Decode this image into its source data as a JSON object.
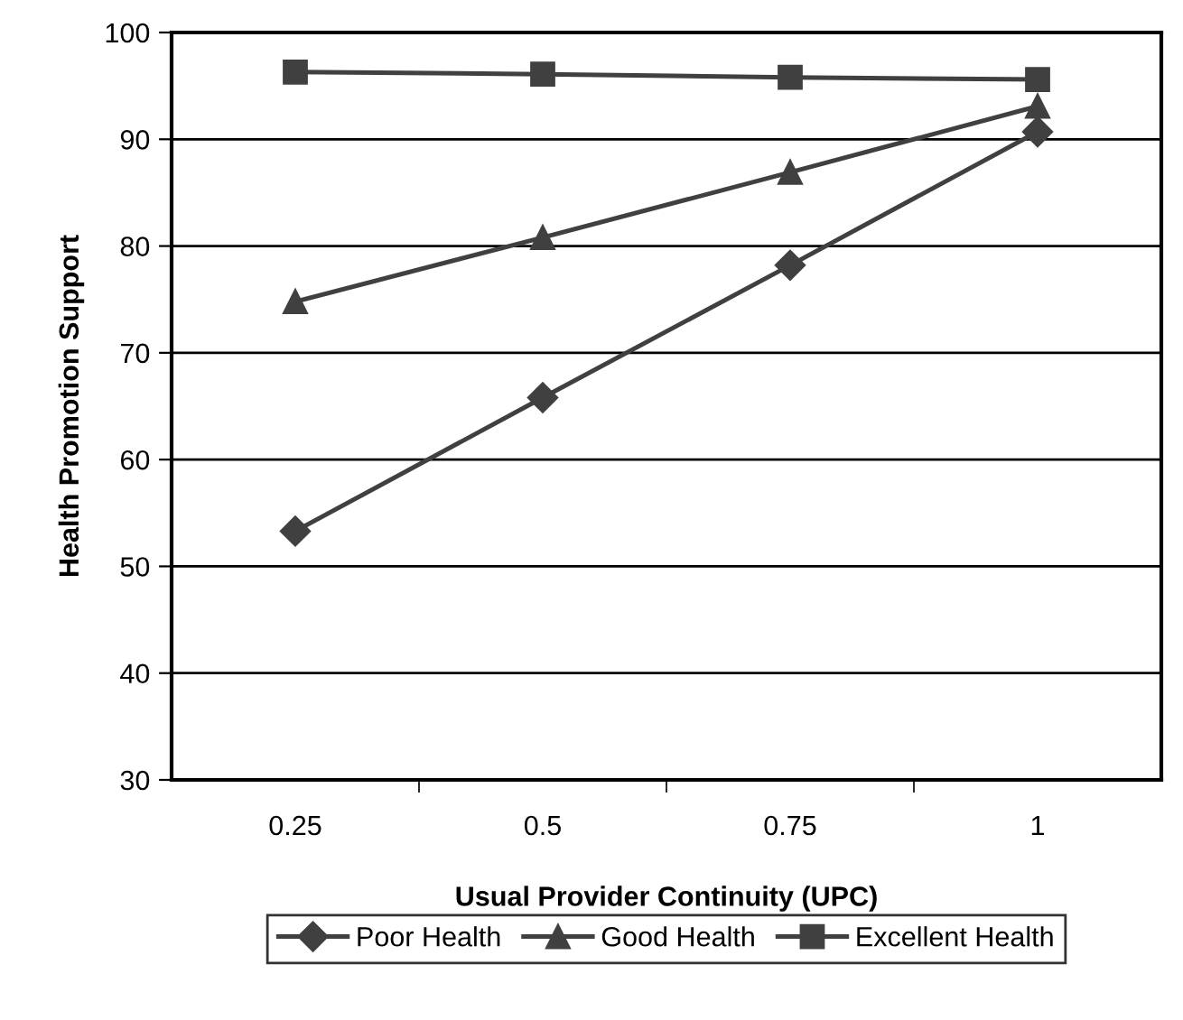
{
  "chart_data": {
    "type": "line",
    "xlabel": "Usual Provider Continuity (UPC)",
    "ylabel": "Health Promotion Support",
    "categories": [
      "0.25",
      "0.5",
      "0.75",
      "1"
    ],
    "series": [
      {
        "name": "Poor Health",
        "color": "#404040",
        "marker": "diamond",
        "values": [
          53.3,
          65.8,
          78.2,
          90.7
        ]
      },
      {
        "name": "Good Health",
        "color": "#404040",
        "marker": "triangle",
        "values": [
          74.8,
          80.8,
          86.9,
          93.1
        ]
      },
      {
        "name": "Excellent Health",
        "color": "#404040",
        "marker": "square",
        "values": [
          96.3,
          96.1,
          95.8,
          95.6
        ]
      }
    ],
    "ylim": [
      30,
      100
    ],
    "yticks": [
      30,
      40,
      50,
      60,
      70,
      80,
      90,
      100
    ],
    "grid": "y",
    "legend": "bottom",
    "line_style": "solid"
  }
}
